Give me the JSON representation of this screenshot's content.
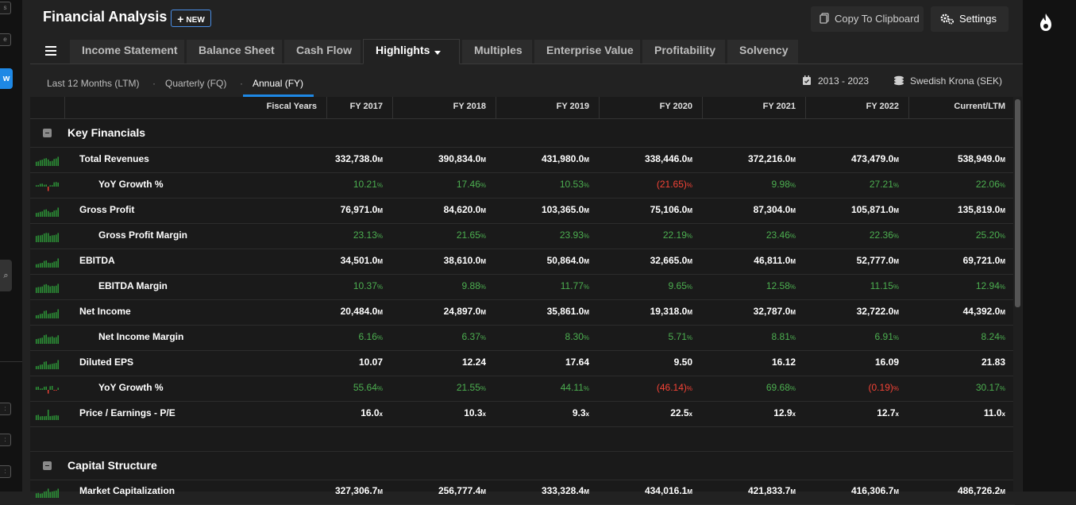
{
  "app": {
    "title": "Financial Analysis",
    "new_label": "NEW",
    "copy_label": "Copy To Clipboard",
    "settings_label": "Settings"
  },
  "tabs": [
    {
      "label": "Income Statement"
    },
    {
      "label": "Balance Sheet"
    },
    {
      "label": "Cash Flow"
    },
    {
      "label": "Highlights",
      "active": true
    },
    {
      "label": "Multiples"
    },
    {
      "label": "Enterprise Value"
    },
    {
      "label": "Profitability"
    },
    {
      "label": "Solvency"
    }
  ],
  "periods": {
    "ltm": "Last 12 Months (LTM)",
    "fq": "Quarterly (FQ)",
    "fy": "Annual (FY)",
    "active": "fy",
    "date_range": "2013 - 2023",
    "currency": "Swedish Krona (SEK)"
  },
  "table": {
    "header": {
      "label": "Fiscal Years",
      "columns": [
        "FY 2017",
        "FY 2018",
        "FY 2019",
        "FY 2020",
        "FY 2021",
        "FY 2022",
        "Current/LTM"
      ]
    },
    "section1": "Key Financials",
    "section2": "Capital Structure",
    "rows": [
      {
        "label": "Total Revenues",
        "sub": false,
        "kind": "plain",
        "values": [
          "332,738.0",
          "390,834.0",
          "431,980.0",
          "338,446.0",
          "372,216.0",
          "473,479.0",
          "538,949.0"
        ],
        "suffix": "M"
      },
      {
        "label": "YoY Growth %",
        "sub": true,
        "kind": "pct",
        "values": [
          "10.21",
          "17.46",
          "10.53",
          "(21.65)",
          "9.98",
          "27.21",
          "22.06"
        ],
        "suffix": "%"
      },
      {
        "label": "Gross Profit",
        "sub": false,
        "kind": "plain",
        "values": [
          "76,971.0",
          "84,620.0",
          "103,365.0",
          "75,106.0",
          "87,304.0",
          "105,871.0",
          "135,819.0"
        ],
        "suffix": "M"
      },
      {
        "label": "Gross Profit Margin",
        "sub": true,
        "kind": "pct",
        "values": [
          "23.13",
          "21.65",
          "23.93",
          "22.19",
          "23.46",
          "22.36",
          "25.20"
        ],
        "suffix": "%"
      },
      {
        "label": "EBITDA",
        "sub": false,
        "kind": "plain",
        "values": [
          "34,501.0",
          "38,610.0",
          "50,864.0",
          "32,665.0",
          "46,811.0",
          "52,777.0",
          "69,721.0"
        ],
        "suffix": "M"
      },
      {
        "label": "EBITDA Margin",
        "sub": true,
        "kind": "pct",
        "values": [
          "10.37",
          "9.88",
          "11.77",
          "9.65",
          "12.58",
          "11.15",
          "12.94"
        ],
        "suffix": "%"
      },
      {
        "label": "Net Income",
        "sub": false,
        "kind": "plain",
        "values": [
          "20,484.0",
          "24,897.0",
          "35,861.0",
          "19,318.0",
          "32,787.0",
          "32,722.0",
          "44,392.0"
        ],
        "suffix": "M"
      },
      {
        "label": "Net Income Margin",
        "sub": true,
        "kind": "pct",
        "values": [
          "6.16",
          "6.37",
          "8.30",
          "5.71",
          "8.81",
          "6.91",
          "8.24"
        ],
        "suffix": "%"
      },
      {
        "label": "Diluted EPS",
        "sub": false,
        "kind": "plain",
        "values": [
          "10.07",
          "12.24",
          "17.64",
          "9.50",
          "16.12",
          "16.09",
          "21.83"
        ],
        "suffix": ""
      },
      {
        "label": "YoY Growth %",
        "sub": true,
        "kind": "pct",
        "values": [
          "55.64",
          "21.55",
          "44.11",
          "(46.14)",
          "69.68",
          "(0.19)",
          "30.17"
        ],
        "suffix": "%"
      },
      {
        "label": "Price / Earnings - P/E",
        "sub": false,
        "kind": "plain",
        "values": [
          "16.0",
          "10.3",
          "9.3",
          "22.5",
          "12.9",
          "12.7",
          "11.0"
        ],
        "suffix": "x"
      },
      {
        "label": "Market Capitalization",
        "sub": false,
        "kind": "plain",
        "values": [
          "327,306.7",
          "256,777.4",
          "333,328.4",
          "434,016.1",
          "421,833.7",
          "416,306.7",
          "486,726.2"
        ],
        "suffix": "M"
      }
    ]
  },
  "colors": {
    "accent": "#1e88e5",
    "positive": "#4caf50",
    "negative": "#f44336",
    "spark": "#2e9e3a"
  }
}
